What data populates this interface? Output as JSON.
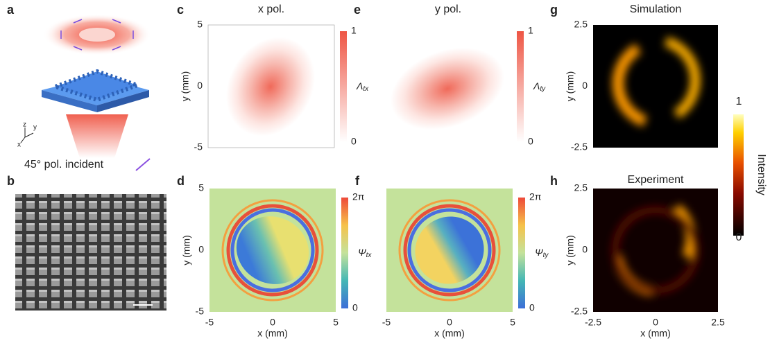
{
  "panels": [
    {
      "label": "a",
      "caption": "45° pol. incident",
      "axes": [
        "z",
        "y",
        "x"
      ]
    },
    {
      "label": "b"
    },
    {
      "label": "c",
      "title": "x pol.",
      "y_label": "y (mm)",
      "y_ticks": [
        "5",
        "0",
        "-5"
      ],
      "colorbar_ticks": [
        "1",
        "0"
      ],
      "colorbar_symbol": "Λ",
      "colorbar_subscript": "tx"
    },
    {
      "label": "d",
      "y_label": "y (mm)",
      "y_ticks": [
        "5",
        "0",
        "-5"
      ],
      "x_ticks": [
        "-5",
        "0",
        "5"
      ],
      "x_label": "x (mm)",
      "colorbar_ticks": [
        "2π",
        "0"
      ],
      "colorbar_symbol": "Ψ",
      "colorbar_subscript": "tx"
    },
    {
      "label": "e",
      "title": "y pol.",
      "colorbar_ticks": [
        "1",
        "0"
      ],
      "colorbar_symbol": "Λ",
      "colorbar_subscript": "ty"
    },
    {
      "label": "f",
      "x_ticks": [
        "-5",
        "0",
        "5"
      ],
      "x_label": "x (mm)",
      "colorbar_ticks": [
        "2π",
        "0"
      ],
      "colorbar_symbol": "Ψ",
      "colorbar_subscript": "ty"
    },
    {
      "label": "g",
      "title": "Simulation",
      "y_label": "y (mm)",
      "y_ticks": [
        "2.5",
        "0",
        "-2.5"
      ]
    },
    {
      "label": "h",
      "title": "Experiment",
      "y_label": "y (mm)",
      "y_ticks": [
        "2.5",
        "0",
        "-2.5"
      ],
      "x_ticks": [
        "-2.5",
        "0",
        "2.5"
      ],
      "x_label": "x (mm)"
    }
  ],
  "colorbar": {
    "ticks": [
      "1",
      "0"
    ],
    "label": "Intensity"
  }
}
